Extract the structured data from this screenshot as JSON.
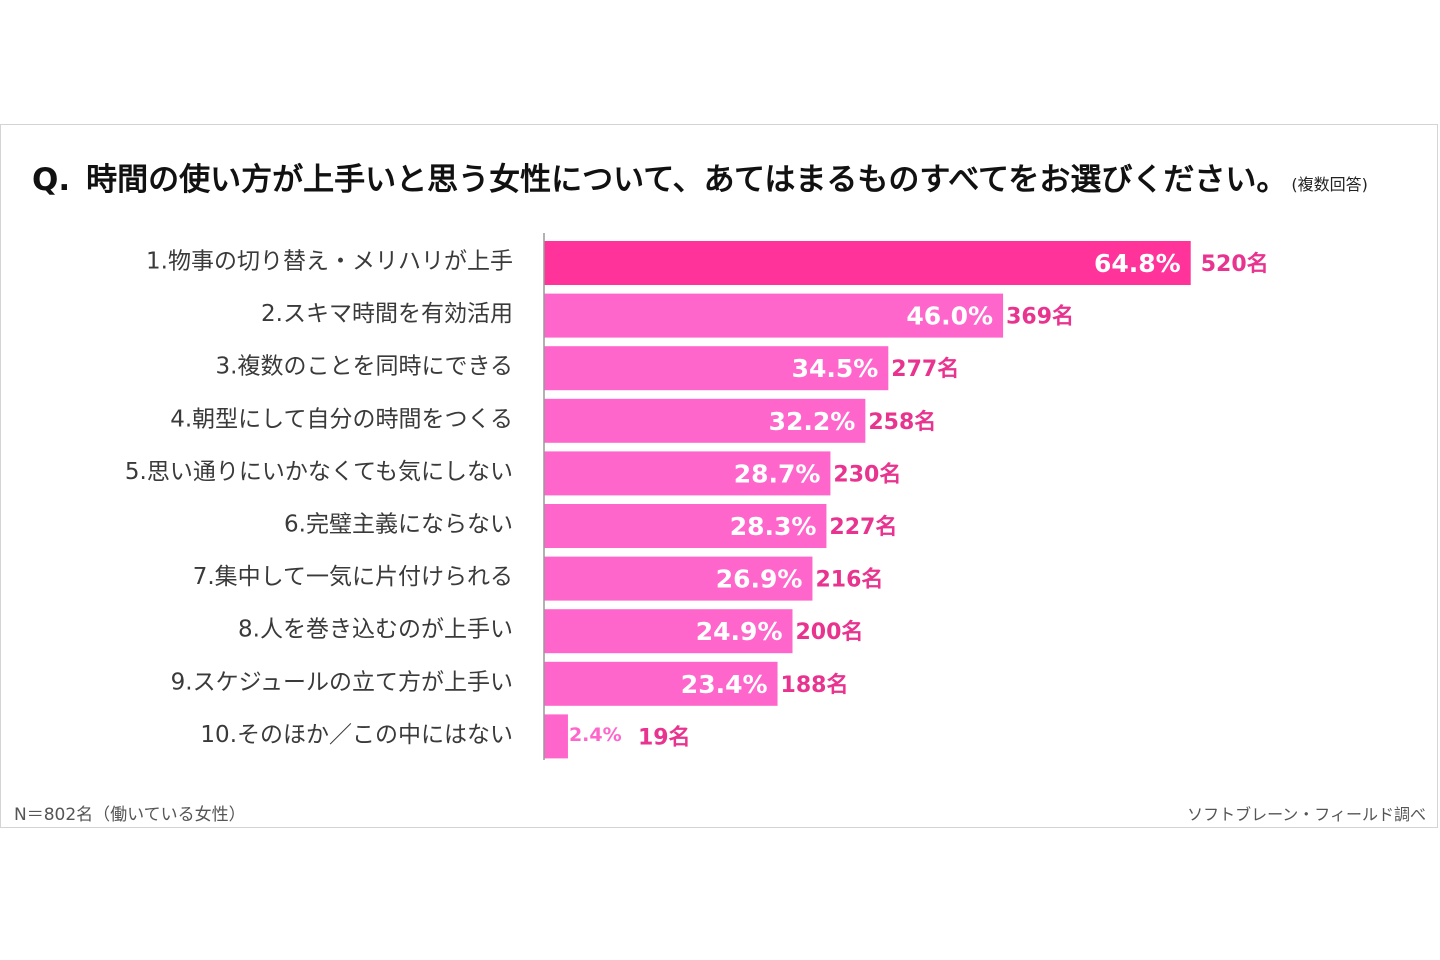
{
  "title": {
    "q_label": "Q.",
    "text": "時間の使い方が上手いと思う女性について、あてはまるものすべてをお選びください。",
    "note": "(複数回答)"
  },
  "footnote": "N＝802名（働いている女性）",
  "source": "ソフトブレーン・フィールド調べ",
  "colors": {
    "bar_top": "#ff3399",
    "bar": "#ff66cc",
    "count_text": "#e8338f",
    "axis": "#999999"
  },
  "chart_data": {
    "type": "bar",
    "orientation": "horizontal",
    "categories": [
      "1.物事の切り替え・メリハリが上手",
      "2.スキマ時間を有効活用",
      "3.複数のことを同時にできる",
      "4.朝型にして自分の時間をつくる",
      "5.思い通りにいかなくても気にしない",
      "6.完璧主義にならない",
      "7.集中して一気に片付けられる",
      "8.人を巻き込むのが上手い",
      "9.スケジュールの立て方が上手い",
      "10.そのほか／この中にはない"
    ],
    "values": [
      64.8,
      46.0,
      34.5,
      32.2,
      28.7,
      28.3,
      26.9,
      24.9,
      23.4,
      2.4
    ],
    "value_labels": [
      "64.8%",
      "46.0%",
      "34.5%",
      "32.2%",
      "28.7%",
      "28.3%",
      "26.9%",
      "24.9%",
      "23.4%",
      "2.4%"
    ],
    "count_labels": [
      "520名",
      "369名",
      "277名",
      "258名",
      "230名",
      "227名",
      "216名",
      "200名",
      "188名",
      "19名"
    ],
    "grid": false,
    "legend": "none"
  }
}
